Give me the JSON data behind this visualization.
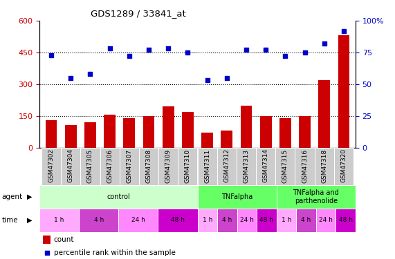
{
  "title": "GDS1289 / 33841_at",
  "samples": [
    "GSM47302",
    "GSM47304",
    "GSM47305",
    "GSM47306",
    "GSM47307",
    "GSM47308",
    "GSM47309",
    "GSM47310",
    "GSM47311",
    "GSM47312",
    "GSM47313",
    "GSM47314",
    "GSM47315",
    "GSM47316",
    "GSM47318",
    "GSM47320"
  ],
  "counts": [
    130,
    108,
    120,
    155,
    140,
    148,
    195,
    170,
    72,
    80,
    200,
    148,
    138,
    150,
    320,
    530
  ],
  "percentiles": [
    73,
    55,
    58,
    78,
    72,
    77,
    78,
    75,
    53,
    55,
    77,
    77,
    72,
    75,
    82,
    92
  ],
  "ylim_left": [
    0,
    600
  ],
  "ylim_right": [
    0,
    100
  ],
  "yticks_left": [
    0,
    150,
    300,
    450,
    600
  ],
  "yticks_right": [
    0,
    25,
    50,
    75,
    100
  ],
  "bar_color": "#cc0000",
  "dot_color": "#0000cc",
  "hline_color": "#000000",
  "hline_style": "dotted",
  "legend_count_color": "#cc0000",
  "legend_pct_color": "#0000cc",
  "xticklabel_bg": "#cccccc",
  "agent_groups": [
    {
      "label": "control",
      "start": 0,
      "end": 8,
      "color": "#ccffcc"
    },
    {
      "label": "TNFalpha",
      "start": 8,
      "end": 12,
      "color": "#66ff66"
    },
    {
      "label": "TNFalpha and\nparthenolide",
      "start": 12,
      "end": 16,
      "color": "#66ff66"
    }
  ],
  "time_groups": [
    {
      "label": "1 h",
      "start": 0,
      "end": 2,
      "color": "#ffaaff"
    },
    {
      "label": "4 h",
      "start": 2,
      "end": 4,
      "color": "#cc44cc"
    },
    {
      "label": "24 h",
      "start": 4,
      "end": 6,
      "color": "#ff88ff"
    },
    {
      "label": "48 h",
      "start": 6,
      "end": 8,
      "color": "#cc00cc"
    },
    {
      "label": "1 h",
      "start": 8,
      "end": 9,
      "color": "#ffaaff"
    },
    {
      "label": "4 h",
      "start": 9,
      "end": 10,
      "color": "#cc44cc"
    },
    {
      "label": "24 h",
      "start": 10,
      "end": 11,
      "color": "#ff88ff"
    },
    {
      "label": "48 h",
      "start": 11,
      "end": 12,
      "color": "#cc00cc"
    },
    {
      "label": "1 h",
      "start": 12,
      "end": 13,
      "color": "#ffaaff"
    },
    {
      "label": "4 h",
      "start": 13,
      "end": 14,
      "color": "#cc44cc"
    },
    {
      "label": "24 h",
      "start": 14,
      "end": 15,
      "color": "#ff88ff"
    },
    {
      "label": "48 h",
      "start": 15,
      "end": 16,
      "color": "#cc00cc"
    }
  ]
}
